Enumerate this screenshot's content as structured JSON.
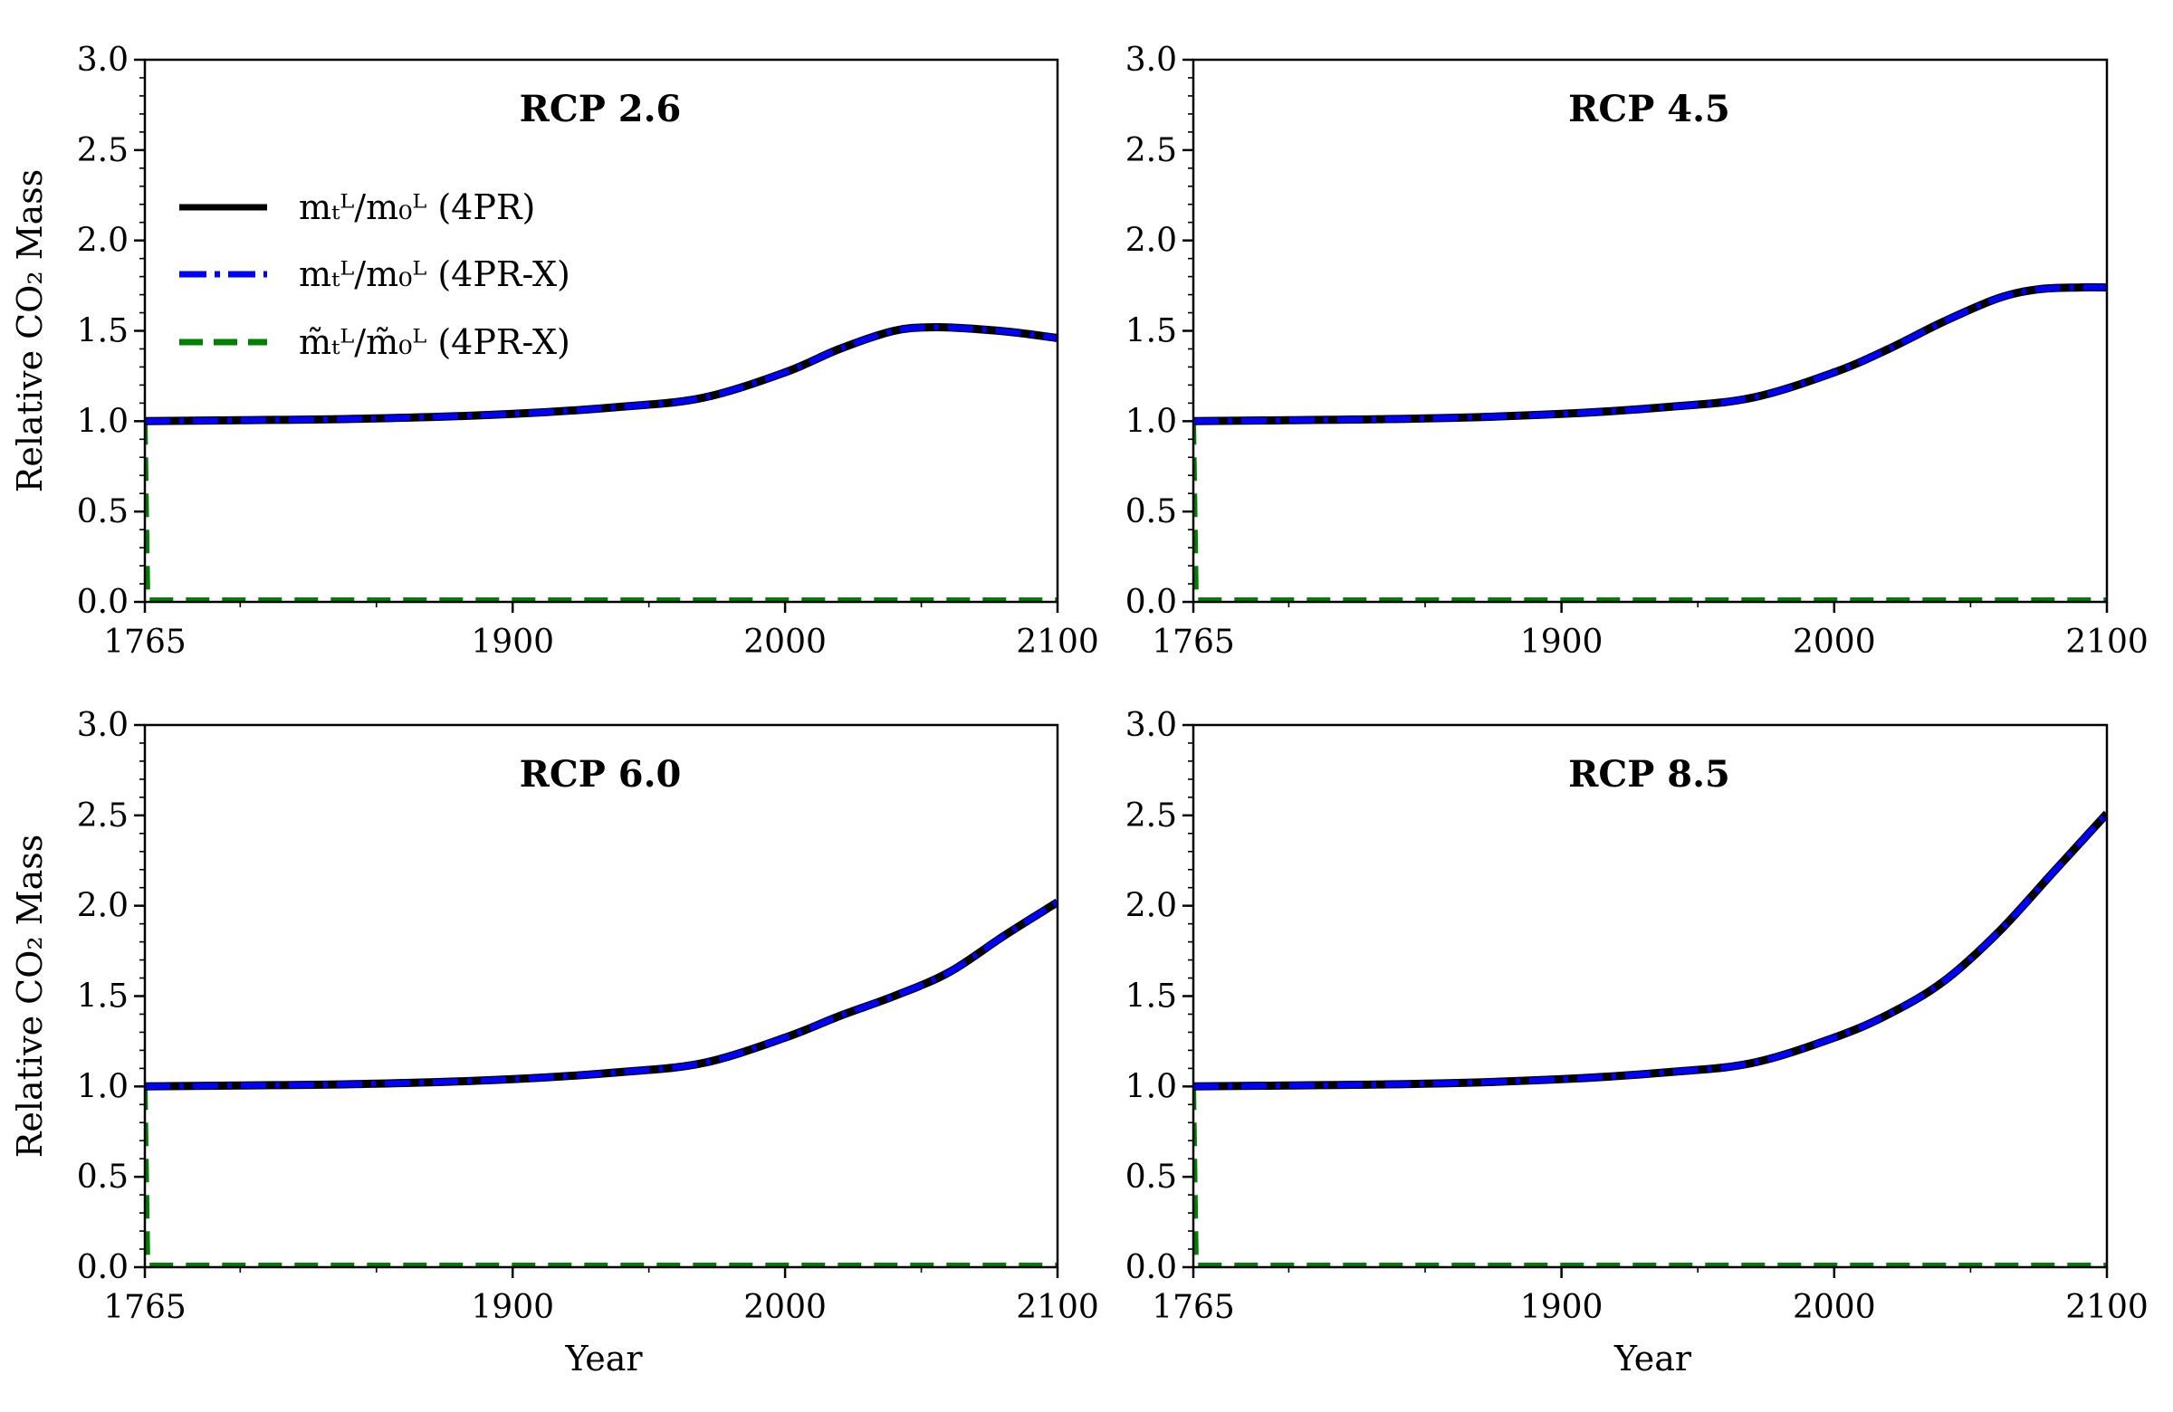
{
  "chart_data": [
    {
      "type": "line",
      "title": "RCP 2.6",
      "xlabel": "",
      "ylabel": "Relative CO₂ Mass",
      "xlim": [
        1765,
        2100
      ],
      "ylim": [
        0.0,
        3.0
      ],
      "xticks": [
        "1765",
        "1900",
        "2000",
        "2100"
      ],
      "yticks": [
        "0.0",
        "0.5",
        "1.0",
        "1.5",
        "2.0",
        "2.5",
        "3.0"
      ],
      "legend": [
        {
          "label": "mₜᴸ/m₀ᴸ (4PR)",
          "color": "#000000",
          "style": "solid"
        },
        {
          "label": "mₜᴸ/m₀ᴸ (4PR-X)",
          "color": "#0000ff",
          "style": "dashdot"
        },
        {
          "label": "m̃ₜᴸ/m̃₀ᴸ (4PR-X)",
          "color": "#008000",
          "style": "dashed"
        }
      ],
      "series": [
        {
          "x": [
            1765,
            1800,
            1850,
            1900,
            1940,
            1970,
            2000,
            2020,
            2040,
            2055,
            2070,
            2085,
            2100
          ],
          "y": [
            1.0,
            1.005,
            1.015,
            1.04,
            1.08,
            1.13,
            1.27,
            1.4,
            1.5,
            1.52,
            1.51,
            1.49,
            1.46
          ]
        },
        {
          "x": [
            1765,
            1800,
            1850,
            1900,
            1940,
            1970,
            2000,
            2020,
            2040,
            2055,
            2070,
            2085,
            2100
          ],
          "y": [
            1.0,
            1.005,
            1.015,
            1.04,
            1.08,
            1.13,
            1.27,
            1.4,
            1.5,
            1.52,
            1.51,
            1.49,
            1.46
          ]
        },
        {
          "x": [
            1765,
            1766,
            2100
          ],
          "y": [
            1.0,
            0.01,
            0.01
          ]
        }
      ]
    },
    {
      "type": "line",
      "title": "RCP 4.5",
      "xlabel": "",
      "ylabel": "",
      "xlim": [
        1765,
        2100
      ],
      "ylim": [
        0.0,
        3.0
      ],
      "xticks": [
        "1765",
        "1900",
        "2000",
        "2100"
      ],
      "yticks": [
        "0.0",
        "0.5",
        "1.0",
        "1.5",
        "2.0",
        "2.5",
        "3.0"
      ],
      "series": [
        {
          "x": [
            1765,
            1800,
            1850,
            1900,
            1940,
            1970,
            2000,
            2020,
            2040,
            2060,
            2075,
            2090,
            2100
          ],
          "y": [
            1.0,
            1.005,
            1.015,
            1.04,
            1.08,
            1.13,
            1.27,
            1.4,
            1.55,
            1.68,
            1.73,
            1.74,
            1.74
          ]
        },
        {
          "x": [
            1765,
            1800,
            1850,
            1900,
            1940,
            1970,
            2000,
            2020,
            2040,
            2060,
            2075,
            2090,
            2100
          ],
          "y": [
            1.0,
            1.005,
            1.015,
            1.04,
            1.08,
            1.13,
            1.27,
            1.4,
            1.55,
            1.68,
            1.73,
            1.74,
            1.74
          ]
        },
        {
          "x": [
            1765,
            1766,
            2100
          ],
          "y": [
            1.0,
            0.01,
            0.01
          ]
        }
      ]
    },
    {
      "type": "line",
      "title": "RCP 6.0",
      "xlabel": "Year",
      "ylabel": "Relative CO₂ Mass",
      "xlim": [
        1765,
        2100
      ],
      "ylim": [
        0.0,
        3.0
      ],
      "xticks": [
        "1765",
        "1900",
        "2000",
        "2100"
      ],
      "yticks": [
        "0.0",
        "0.5",
        "1.0",
        "1.5",
        "2.0",
        "2.5",
        "3.0"
      ],
      "series": [
        {
          "x": [
            1765,
            1800,
            1850,
            1900,
            1940,
            1970,
            2000,
            2020,
            2040,
            2060,
            2080,
            2100
          ],
          "y": [
            1.0,
            1.005,
            1.015,
            1.04,
            1.08,
            1.13,
            1.27,
            1.39,
            1.5,
            1.63,
            1.83,
            2.02
          ]
        },
        {
          "x": [
            1765,
            1800,
            1850,
            1900,
            1940,
            1970,
            2000,
            2020,
            2040,
            2060,
            2080,
            2100
          ],
          "y": [
            1.0,
            1.005,
            1.015,
            1.04,
            1.08,
            1.13,
            1.27,
            1.39,
            1.5,
            1.63,
            1.83,
            2.02
          ]
        },
        {
          "x": [
            1765,
            1766,
            2100
          ],
          "y": [
            1.0,
            0.01,
            0.01
          ]
        }
      ]
    },
    {
      "type": "line",
      "title": "RCP 8.5",
      "xlabel": "Year",
      "ylabel": "",
      "xlim": [
        1765,
        2100
      ],
      "ylim": [
        0.0,
        3.0
      ],
      "xticks": [
        "1765",
        "1900",
        "2000",
        "2100"
      ],
      "yticks": [
        "0.0",
        "0.5",
        "1.0",
        "1.5",
        "2.0",
        "2.5",
        "3.0"
      ],
      "series": [
        {
          "x": [
            1765,
            1800,
            1850,
            1900,
            1940,
            1970,
            2000,
            2020,
            2040,
            2060,
            2080,
            2100
          ],
          "y": [
            1.0,
            1.005,
            1.015,
            1.04,
            1.08,
            1.13,
            1.27,
            1.4,
            1.58,
            1.85,
            2.18,
            2.51
          ]
        },
        {
          "x": [
            1765,
            1800,
            1850,
            1900,
            1940,
            1970,
            2000,
            2020,
            2040,
            2060,
            2080,
            2100
          ],
          "y": [
            1.0,
            1.005,
            1.015,
            1.04,
            1.08,
            1.13,
            1.27,
            1.4,
            1.58,
            1.85,
            2.18,
            2.51
          ]
        },
        {
          "x": [
            1765,
            1766,
            2100
          ],
          "y": [
            1.0,
            0.01,
            0.01
          ]
        }
      ]
    }
  ]
}
